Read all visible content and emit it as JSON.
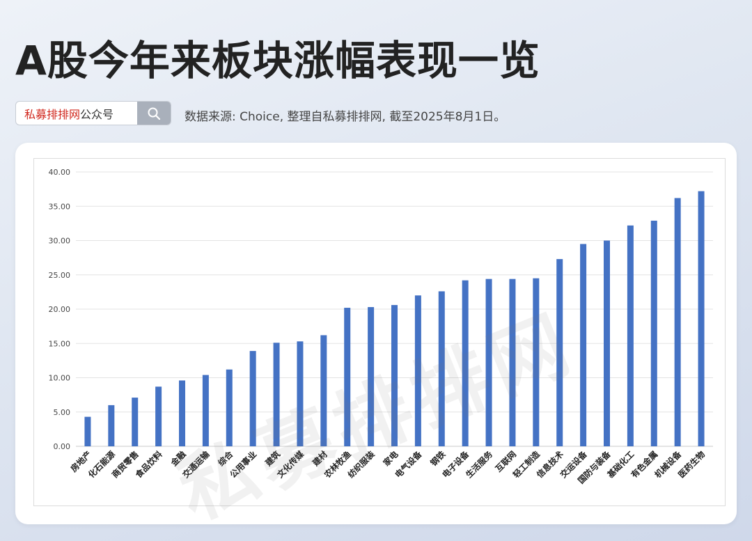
{
  "title": "A股今年来板块涨幅表现一览",
  "search": {
    "brand_red": "私募排排网",
    "brand_dark": "公众号",
    "icon": "search-icon"
  },
  "source_text": "数据来源: Choice, 整理自私募排排网, 截至2025年8月1日。",
  "watermark": "私募排排网",
  "colors": {
    "bar": "#4472c4",
    "grid": "#e3e3e3",
    "axis_text": "#444444"
  },
  "chart_data": {
    "type": "bar",
    "title": "",
    "xlabel": "",
    "ylabel": "",
    "ylim": [
      0,
      40
    ],
    "yticks": [
      "0.00",
      "5.00",
      "10.00",
      "15.00",
      "20.00",
      "25.00",
      "30.00",
      "35.00",
      "40.00"
    ],
    "grid": true,
    "categories": [
      "房地产",
      "化石能源",
      "商贸零售",
      "食品饮料",
      "金融",
      "交通运输",
      "综合",
      "公用事业",
      "建筑",
      "文化传媒",
      "建材",
      "农林牧渔",
      "纺织服装",
      "家电",
      "电气设备",
      "钢铁",
      "电子设备",
      "生活服务",
      "互联网",
      "轻工制造",
      "信息技术",
      "交运设备",
      "国防与装备",
      "基础化工",
      "有色金属",
      "机械设备",
      "医药生物"
    ],
    "values": [
      4.3,
      6.0,
      7.1,
      8.7,
      9.6,
      10.4,
      11.2,
      13.9,
      15.1,
      15.3,
      16.2,
      20.2,
      20.3,
      20.6,
      22.0,
      22.6,
      24.2,
      24.4,
      24.4,
      24.5,
      27.3,
      29.5,
      30.0,
      32.2,
      32.9,
      36.2,
      37.2
    ]
  }
}
